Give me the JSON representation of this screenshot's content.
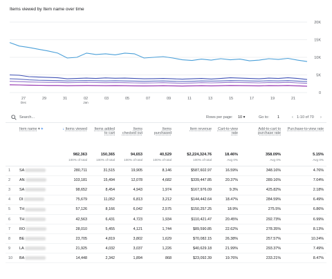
{
  "chart_title": "Items viewed by Item name over time",
  "chart_data": {
    "type": "line",
    "y_ticks": [
      "20K",
      "15K",
      "10K",
      "5K",
      "0"
    ],
    "ylim": [
      0,
      20000
    ],
    "x_ticks": [
      "27 Dec",
      "29",
      "31",
      "02 Jan",
      "03",
      "05",
      "07",
      "09",
      "11",
      "13",
      "15",
      "17",
      "19",
      "21"
    ],
    "series": [
      {
        "color": "#4a9fd8",
        "values": [
          14200,
          13200,
          12800,
          12300,
          11800,
          11200,
          9800,
          10000,
          11200,
          10800,
          11000,
          10700,
          11200,
          11000,
          9800,
          10000,
          10200,
          9800,
          9300,
          9100,
          9500,
          9200,
          9600,
          9300,
          9500,
          9000,
          9200,
          9600,
          9400,
          9700,
          9200,
          8800
        ]
      },
      {
        "color": "#3f51b5",
        "values": [
          5000,
          4900,
          4500,
          4400,
          4300,
          4200,
          3900,
          4000,
          4100,
          4000,
          4150,
          4050,
          4100,
          4000,
          3900,
          3950,
          4000,
          3900,
          3800,
          3900,
          4000,
          3850,
          4000,
          4200,
          4100,
          4000,
          3900,
          4100,
          4000,
          4200,
          4000,
          3700
        ]
      },
      {
        "color": "#5c6bc0",
        "values": [
          3900,
          3800,
          3600,
          3500,
          3450,
          3400,
          3300,
          3350,
          3400,
          3350,
          3300,
          3350,
          3300,
          3250,
          3200,
          3250,
          3300,
          3200,
          3150,
          3200,
          3300,
          3250,
          3300,
          3400,
          3350,
          3300,
          3250,
          3350,
          3300,
          3400,
          3250,
          3100
        ]
      },
      {
        "color": "#9575cd",
        "values": [
          3200,
          3100,
          3000,
          2950,
          2900,
          2900,
          2800,
          2850,
          2900,
          2850,
          2800,
          2850,
          2800,
          2750,
          2700,
          2750,
          2800,
          2700,
          2650,
          2700,
          2800,
          2750,
          2800,
          2900,
          2850,
          2800,
          2750,
          2850,
          2800,
          2900,
          2750,
          2600
        ]
      },
      {
        "color": "#8e24aa",
        "values": [
          2200,
          2150,
          2100,
          2050,
          2000,
          2000,
          1950,
          1980,
          2000,
          1980,
          1950,
          1980,
          1950,
          1900,
          1880,
          1900,
          1950,
          1900,
          1850,
          1900,
          1950,
          1900,
          1950,
          2000,
          1980,
          1950,
          1900,
          1980,
          1950,
          2000,
          1900,
          1800
        ]
      }
    ]
  },
  "toolbar": {
    "search_placeholder": "Search...",
    "rows_per_page_label": "Rows per page:",
    "rows_per_page_value": "10",
    "goto_label": "Go to:",
    "goto_value": "1",
    "range_text": "1-10 of 70"
  },
  "table": {
    "dimension_header": "Item name",
    "columns": [
      {
        "label": "Items viewed",
        "sorted": true
      },
      {
        "label": "Items added to cart"
      },
      {
        "label": "Items checked out"
      },
      {
        "label": "Items purchased"
      },
      {
        "label": "Item revenue"
      },
      {
        "label": "Cart-to-view rate"
      },
      {
        "label": "Add-to-cart to purchase rate"
      },
      {
        "label": "Purchase-to-view rate"
      }
    ],
    "totals": [
      {
        "value": "982,363",
        "sub": "100% of total"
      },
      {
        "value": "150,365",
        "sub": "100% of total"
      },
      {
        "value": "94,653",
        "sub": "100% of total"
      },
      {
        "value": "40,529",
        "sub": "100% of total"
      },
      {
        "value": "$2,224,324.76",
        "sub": "100% of total"
      },
      {
        "value": "18.46%",
        "sub": "Avg 0%"
      },
      {
        "value": "358.09%",
        "sub": "Avg 0%"
      },
      {
        "value": "5.15%",
        "sub": "Avg 0%"
      }
    ],
    "rows": [
      {
        "idx": "1",
        "name": "SA",
        "cells": [
          "280,711",
          "31,515",
          "19,905",
          "8,146",
          "$587,602.97",
          "16.59%",
          "348.16%",
          "4.76%"
        ]
      },
      {
        "idx": "2",
        "name": "AN",
        "cells": [
          "103,181",
          "15,494",
          "12,078",
          "4,682",
          "$339,447.85",
          "20.37%",
          "289.16%",
          "7.04%"
        ]
      },
      {
        "idx": "3",
        "name": "SA",
        "cells": [
          "98,652",
          "8,454",
          "4,943",
          "1,974",
          "$167,976.09",
          "9.3%",
          "425.82%",
          "2.18%"
        ]
      },
      {
        "idx": "4",
        "name": "DI",
        "cells": [
          "75,679",
          "11,052",
          "6,813",
          "3,212",
          "$144,442.64",
          "18.47%",
          "284.59%",
          "6.49%"
        ]
      },
      {
        "idx": "5",
        "name": "TH",
        "cells": [
          "57,126",
          "8,166",
          "6,042",
          "2,575",
          "$150,257.25",
          "18.9%",
          "275.5%",
          "6.86%"
        ]
      },
      {
        "idx": "6",
        "name": "TH",
        "cells": [
          "42,563",
          "6,431",
          "4,723",
          "1,934",
          "$110,421.47",
          "20.45%",
          "292.73%",
          "6.99%"
        ]
      },
      {
        "idx": "7",
        "name": "RO",
        "cells": [
          "28,010",
          "5,455",
          "4,121",
          "1,744",
          "$89,590.85",
          "22.62%",
          "278.35%",
          "8.13%"
        ]
      },
      {
        "idx": "8",
        "name": "BE",
        "cells": [
          "23,705",
          "4,819",
          "3,802",
          "1,629",
          "$70,082.15",
          "26.38%",
          "257.57%",
          "10.24%"
        ]
      },
      {
        "idx": "9",
        "name": "LA",
        "cells": [
          "21,925",
          "4,032",
          "3,037",
          "1,226",
          "$40,629.18",
          "21.99%",
          "293.37%",
          "7.49%"
        ]
      },
      {
        "idx": "10",
        "name": "BA",
        "cells": [
          "14,448",
          "2,342",
          "1,894",
          "868",
          "$23,092.39",
          "19.76%",
          "233.21%",
          "8.47%"
        ]
      }
    ]
  }
}
